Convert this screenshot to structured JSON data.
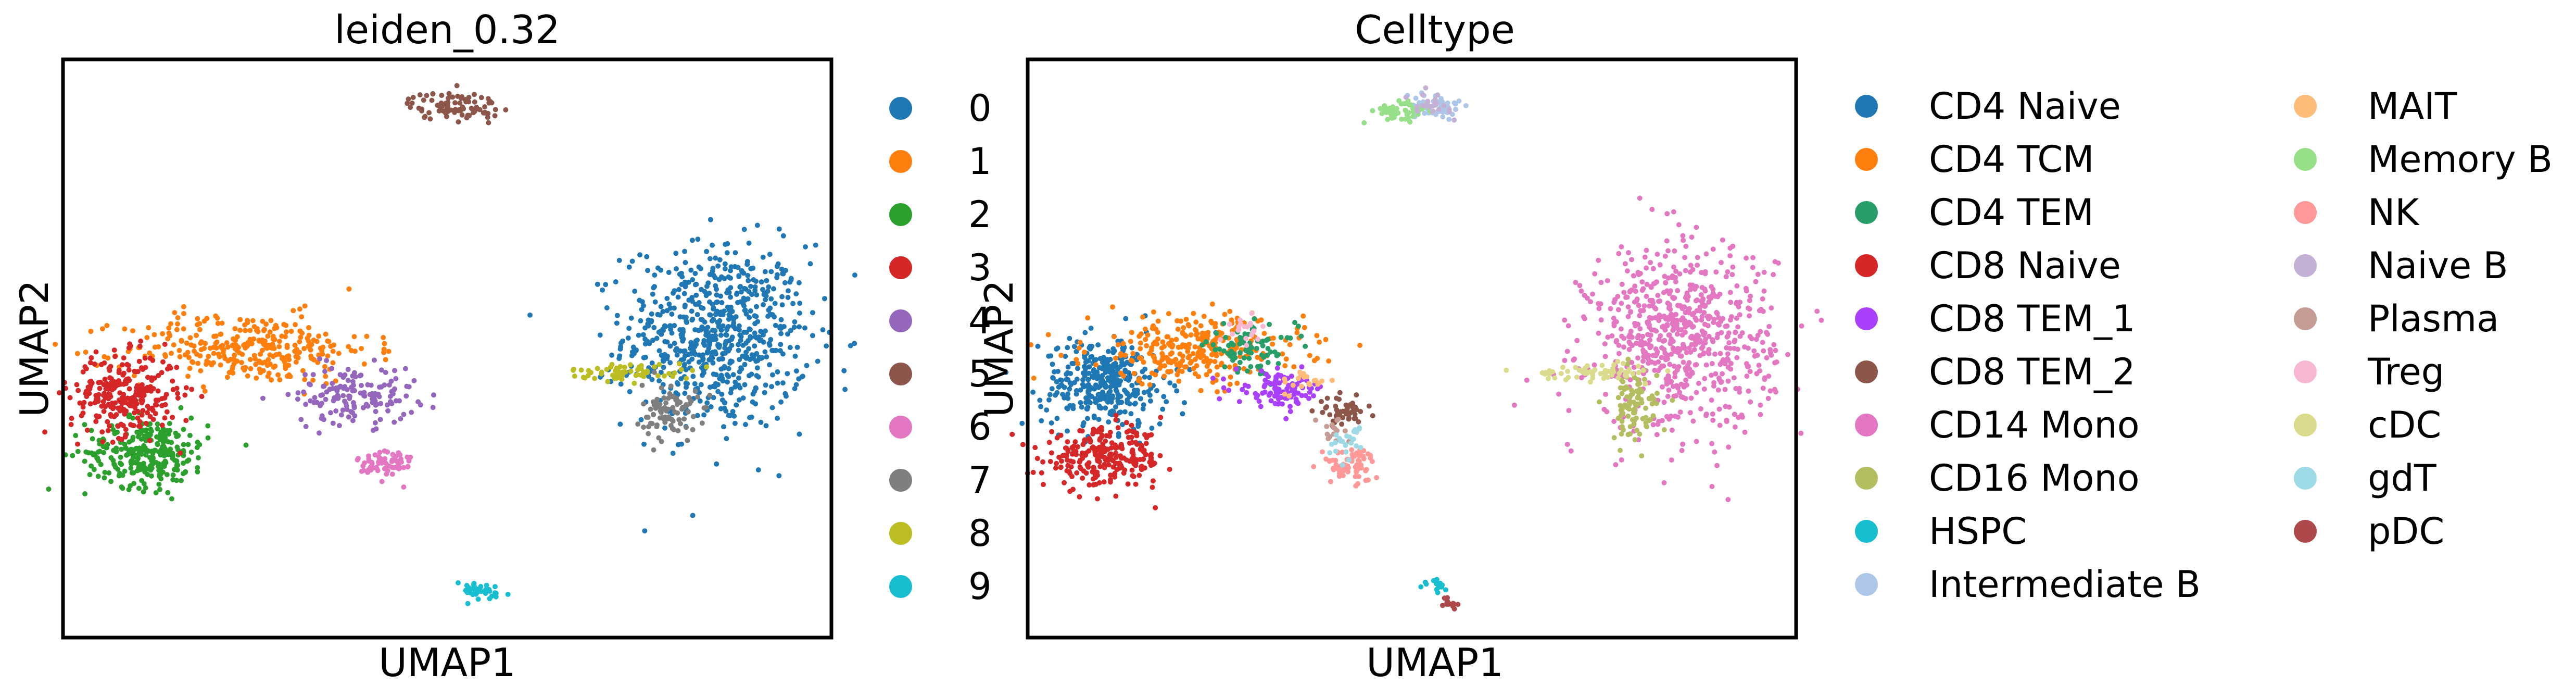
{
  "chart_data": [
    {
      "type": "scatter",
      "title": "leiden_0.32",
      "xlabel": "UMAP1",
      "ylabel": "UMAP2",
      "xlim": [
        0,
        100
      ],
      "ylim": [
        0,
        100
      ],
      "grid": false,
      "legend_position": "right",
      "ticks": false,
      "legend": [
        "0",
        "1",
        "2",
        "3",
        "4",
        "5",
        "6",
        "7",
        "8",
        "9"
      ],
      "colors": [
        "#1f77b4",
        "#ff7f0e",
        "#2ca02c",
        "#d62728",
        "#9467bd",
        "#8c564b",
        "#e377c2",
        "#7f7f7f",
        "#bcbd22",
        "#17becf"
      ],
      "clusters": [
        {
          "name": "0",
          "cx": 85,
          "cy": 52,
          "sx": 6,
          "sy": 8,
          "n": 700
        },
        {
          "name": "1",
          "cx": 24,
          "cy": 50,
          "sx": 8,
          "sy": 3,
          "n": 320
        },
        {
          "name": "2",
          "cx": 11,
          "cy": 32,
          "sx": 4,
          "sy": 3,
          "n": 280
        },
        {
          "name": "3",
          "cx": 8,
          "cy": 42,
          "sx": 3.5,
          "sy": 3.5,
          "n": 280
        },
        {
          "name": "4",
          "cx": 38,
          "cy": 42,
          "sx": 4,
          "sy": 2.5,
          "n": 150
        },
        {
          "name": "5",
          "cx": 51,
          "cy": 92,
          "sx": 3,
          "sy": 1.2,
          "n": 90
        },
        {
          "name": "6",
          "cx": 42,
          "cy": 30,
          "sx": 1.8,
          "sy": 1.5,
          "n": 70
        },
        {
          "name": "7",
          "cx": 79,
          "cy": 39,
          "sx": 1.8,
          "sy": 2.5,
          "n": 90
        },
        {
          "name": "8",
          "cx": 74,
          "cy": 46,
          "sx": 4,
          "sy": 0.7,
          "n": 60
        },
        {
          "name": "9",
          "cx": 54,
          "cy": 8,
          "sx": 2,
          "sy": 0.8,
          "n": 40
        }
      ]
    },
    {
      "type": "scatter",
      "title": "Celltype",
      "xlabel": "UMAP1",
      "ylabel": "UMAP2",
      "xlim": [
        0,
        100
      ],
      "ylim": [
        0,
        100
      ],
      "grid": false,
      "legend_position": "right",
      "ticks": false,
      "legend": [
        "CD4 Naive",
        "CD4 TCM",
        "CD4 TEM",
        "CD8 Naive",
        "CD8 TEM_1",
        "CD8 TEM_2",
        "CD14 Mono",
        "CD16 Mono",
        "HSPC",
        "Intermediate B",
        "MAIT",
        "Memory B",
        "NK",
        "Naive B",
        "Plasma",
        "Treg",
        "cDC",
        "gdT",
        "pDC"
      ],
      "colors": [
        "#1f77b4",
        "#ff7f0e",
        "#279e68",
        "#d62728",
        "#aa40fc",
        "#8c564b",
        "#e377c2",
        "#b5bd61",
        "#17becf",
        "#aec7e8",
        "#ffbb78",
        "#98df8a",
        "#ff9896",
        "#c5b0d5",
        "#c49c94",
        "#f7b6d2",
        "#dbdb8d",
        "#9edae5",
        "#ad494a"
      ],
      "clusters": [
        {
          "name": "CD4 Naive",
          "cx": 10,
          "cy": 44,
          "sx": 4,
          "sy": 4,
          "n": 350
        },
        {
          "name": "CD4 TCM",
          "cx": 22,
          "cy": 50,
          "sx": 7,
          "sy": 3,
          "n": 300
        },
        {
          "name": "CD4 TEM",
          "cx": 29,
          "cy": 50,
          "sx": 3,
          "sy": 2,
          "n": 80
        },
        {
          "name": "CD8 Naive",
          "cx": 10,
          "cy": 31,
          "sx": 4,
          "sy": 2.5,
          "n": 260
        },
        {
          "name": "CD8 TEM_1",
          "cx": 33,
          "cy": 43,
          "sx": 3,
          "sy": 1.5,
          "n": 100
        },
        {
          "name": "CD8 TEM_2",
          "cx": 41,
          "cy": 39,
          "sx": 1.5,
          "sy": 1.2,
          "n": 50
        },
        {
          "name": "CD14 Mono",
          "cx": 85,
          "cy": 52,
          "sx": 6,
          "sy": 8,
          "n": 700
        },
        {
          "name": "CD16 Mono",
          "cx": 79,
          "cy": 40,
          "sx": 1.5,
          "sy": 3,
          "n": 100
        },
        {
          "name": "HSPC",
          "cx": 53,
          "cy": 9,
          "sx": 0.8,
          "sy": 0.6,
          "n": 15
        },
        {
          "name": "Intermediate B",
          "cx": 53,
          "cy": 92,
          "sx": 2,
          "sy": 1.2,
          "n": 50
        },
        {
          "name": "MAIT",
          "cx": 36,
          "cy": 44,
          "sx": 1.5,
          "sy": 1,
          "n": 20
        },
        {
          "name": "Memory B",
          "cx": 49,
          "cy": 91,
          "sx": 2,
          "sy": 1,
          "n": 50
        },
        {
          "name": "NK",
          "cx": 42,
          "cy": 30,
          "sx": 1.8,
          "sy": 1.5,
          "n": 70
        },
        {
          "name": "Naive B",
          "cx": 52,
          "cy": 92,
          "sx": 1.5,
          "sy": 1,
          "n": 25
        },
        {
          "name": "Plasma",
          "cx": 40,
          "cy": 36,
          "sx": 1,
          "sy": 1,
          "n": 15
        },
        {
          "name": "Treg",
          "cx": 28,
          "cy": 53,
          "sx": 1.5,
          "sy": 1.2,
          "n": 20
        },
        {
          "name": "cDC",
          "cx": 74,
          "cy": 46,
          "sx": 4,
          "sy": 0.7,
          "n": 60
        },
        {
          "name": "gdT",
          "cx": 42,
          "cy": 34,
          "sx": 1.2,
          "sy": 1.5,
          "n": 25
        },
        {
          "name": "pDC",
          "cx": 55,
          "cy": 6,
          "sx": 0.8,
          "sy": 0.6,
          "n": 15
        }
      ]
    }
  ]
}
